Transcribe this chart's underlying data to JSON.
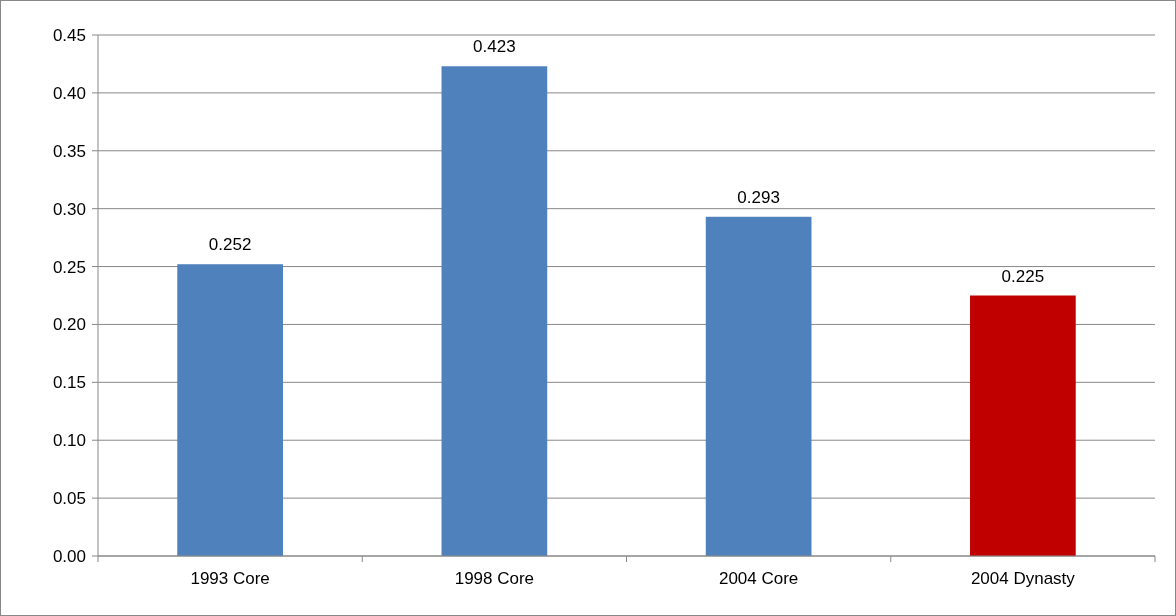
{
  "chart_data": {
    "type": "bar",
    "categories": [
      "1993 Core",
      "1998 Core",
      "2004 Core",
      "2004 Dynasty"
    ],
    "values": [
      0.252,
      0.423,
      0.293,
      0.225
    ],
    "colors": [
      "#4f81bd",
      "#4f81bd",
      "#4f81bd",
      "#c00000"
    ],
    "ylim": [
      0,
      0.45
    ],
    "yticks": [
      {
        "value": 0,
        "label": "0.00"
      },
      {
        "value": 0.05,
        "label": "0.05"
      },
      {
        "value": 0.1,
        "label": "0.10"
      },
      {
        "value": 0.15,
        "label": "0.15"
      },
      {
        "value": 0.2,
        "label": "0.20"
      },
      {
        "value": 0.25,
        "label": "0.25"
      },
      {
        "value": 0.3,
        "label": "0.30"
      },
      {
        "value": 0.35,
        "label": "0.35"
      },
      {
        "value": 0.4,
        "label": "0.40"
      },
      {
        "value": 0.45,
        "label": "0.45"
      }
    ],
    "grid": "y",
    "data_labels": true
  }
}
